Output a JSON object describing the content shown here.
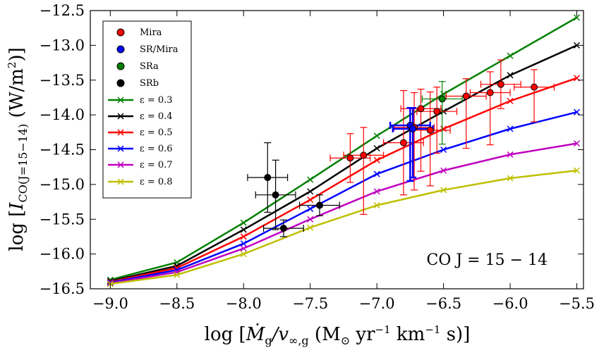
{
  "chart_data": {
    "type": "line",
    "title": "",
    "xlabel": "log [Ṁg/v∞,g (M⊙ yr⁻¹ km⁻¹ s)]",
    "ylabel": "log [I_CO(J=15−14) (W/m²)]",
    "xlabel_parts": {
      "open": "log [",
      "mdot": "Ṁ",
      "mdot_sub": "g",
      "slash_v": "/v",
      "v_sub": "∞,g",
      "units": " (M",
      "sun": "⊙",
      "yr": " yr",
      "exp1": "−1",
      "km": " km",
      "exp2": "−1",
      "close": " s)]"
    },
    "ylabel_parts": {
      "open": "log [",
      "I": "I",
      "sub": "CO(J=15−14)",
      "units": " (W/m",
      "exp": "2",
      "close": ")]"
    },
    "annotation": "CO J = 15 − 14",
    "xlim": [
      -9.15,
      -5.45
    ],
    "ylim": [
      -16.5,
      -12.5
    ],
    "xticks": [
      -9.0,
      -8.5,
      -8.0,
      -7.5,
      -7.0,
      -6.5,
      -6.0,
      -5.5
    ],
    "xtick_labels": [
      "−9.0",
      "−8.5",
      "−8.0",
      "−7.5",
      "−7.0",
      "−6.5",
      "−6.0",
      "−5.5"
    ],
    "yticks": [
      -16.5,
      -16.0,
      -15.5,
      -15.0,
      -14.5,
      -14.0,
      -13.5,
      -13.0,
      -12.5
    ],
    "ytick_labels": [
      "−16.5",
      "−16.0",
      "−15.5",
      "−15.0",
      "−14.5",
      "−14.0",
      "−13.5",
      "−13.0",
      "−12.5"
    ],
    "legend_position": "top-left",
    "model_x": [
      -9.0,
      -8.5,
      -8.0,
      -7.5,
      -7.0,
      -6.5,
      -6.0,
      -5.5
    ],
    "models": [
      {
        "name": "ε = 0.3",
        "color": "#008000",
        "y": [
          -16.37,
          -16.12,
          -15.55,
          -14.93,
          -14.3,
          -13.7,
          -13.15,
          -12.6
        ]
      },
      {
        "name": "ε = 0.4",
        "color": "#000000",
        "y": [
          -16.39,
          -16.17,
          -15.65,
          -15.1,
          -14.48,
          -13.95,
          -13.43,
          -13.0
        ]
      },
      {
        "name": "ε = 0.5",
        "color": "#ff0000",
        "y": [
          -16.4,
          -16.2,
          -15.75,
          -15.22,
          -14.65,
          -14.2,
          -13.8,
          -13.47
        ]
      },
      {
        "name": "ε = 0.6",
        "color": "#0000ff",
        "y": [
          -16.41,
          -16.23,
          -15.85,
          -15.35,
          -14.85,
          -14.5,
          -14.2,
          -13.96
        ]
      },
      {
        "name": "ε = 0.7",
        "color": "#bf00bf",
        "y": [
          -16.42,
          -16.26,
          -15.92,
          -15.5,
          -15.1,
          -14.8,
          -14.57,
          -14.41
        ]
      },
      {
        "name": "ε = 0.8",
        "color": "#bfbf00",
        "y": [
          -16.43,
          -16.3,
          -16.0,
          -15.62,
          -15.3,
          -15.08,
          -14.91,
          -14.8
        ]
      }
    ],
    "point_series": [
      {
        "name": "Mira",
        "color": "#ff0000",
        "error_color": "#ff0000",
        "points": [
          {
            "x": -7.2,
            "y": -14.62,
            "xerr": 0.15,
            "yerr": [
              0.35,
              0.35
            ]
          },
          {
            "x": -7.1,
            "y": -14.58,
            "xerr": 0.15,
            "yerr": [
              0.85,
              0.4
            ]
          },
          {
            "x": -6.8,
            "y": -14.4,
            "xerr": 0.15,
            "yerr": [
              0.75,
              0.75
            ]
          },
          {
            "x": -6.67,
            "y": -13.91,
            "xerr": 0.15,
            "yerr": [
              0.9,
              0.28
            ]
          },
          {
            "x": -6.72,
            "y": -14.18,
            "xerr": 0.15,
            "yerr": [
              0.9,
              0.5
            ]
          },
          {
            "x": -6.6,
            "y": -14.22,
            "xerr": 0.15,
            "yerr": [
              0.8,
              0.55
            ]
          },
          {
            "x": -6.55,
            "y": -13.95,
            "xerr": 0.15,
            "yerr": [
              0.6,
              0.35
            ]
          },
          {
            "x": -6.33,
            "y": -13.73,
            "xerr": 0.15,
            "yerr": [
              0.75,
              0.25
            ]
          },
          {
            "x": -6.15,
            "y": -13.68,
            "xerr": 0.15,
            "yerr": [
              0.75,
              0.3
            ]
          },
          {
            "x": -6.07,
            "y": -13.56,
            "xerr": 0.15,
            "yerr": [
              0.35,
              0.35
            ]
          },
          {
            "x": -5.82,
            "y": -13.6,
            "xerr": 0.15,
            "yerr": [
              0.5,
              0.25
            ]
          }
        ]
      },
      {
        "name": "SR/Mira",
        "color": "#0000ff",
        "error_color": "#0000ff",
        "points": [
          {
            "x": -6.75,
            "y": -14.15,
            "xerr": 0.15,
            "yerr": [
              0.8,
              0.25
            ]
          },
          {
            "x": -6.73,
            "y": -14.2,
            "xerr": 0.15,
            "yerr": [
              0.7,
              0.3
            ]
          }
        ]
      },
      {
        "name": "SRa",
        "color": "#008000",
        "error_color": "#008000",
        "points": [
          {
            "x": -6.51,
            "y": -13.77,
            "xerr": 0.15,
            "yerr": [
              0.65,
              0.25
            ]
          }
        ]
      },
      {
        "name": "SRb",
        "color": "#000000",
        "error_color": "#000000",
        "points": [
          {
            "x": -7.82,
            "y": -14.9,
            "xerr": 0.15,
            "yerr": [
              0.5,
              0.5
            ]
          },
          {
            "x": -7.76,
            "y": -15.15,
            "xerr": 0.15,
            "yerr": [
              0.5,
              0.5
            ]
          },
          {
            "x": -7.7,
            "y": -15.63,
            "xerr": 0.15,
            "yerr": [
              0.12,
              0.12
            ]
          },
          {
            "x": -7.43,
            "y": -15.3,
            "xerr": 0.15,
            "yerr": [
              0.15,
              0.15
            ]
          }
        ]
      }
    ]
  }
}
